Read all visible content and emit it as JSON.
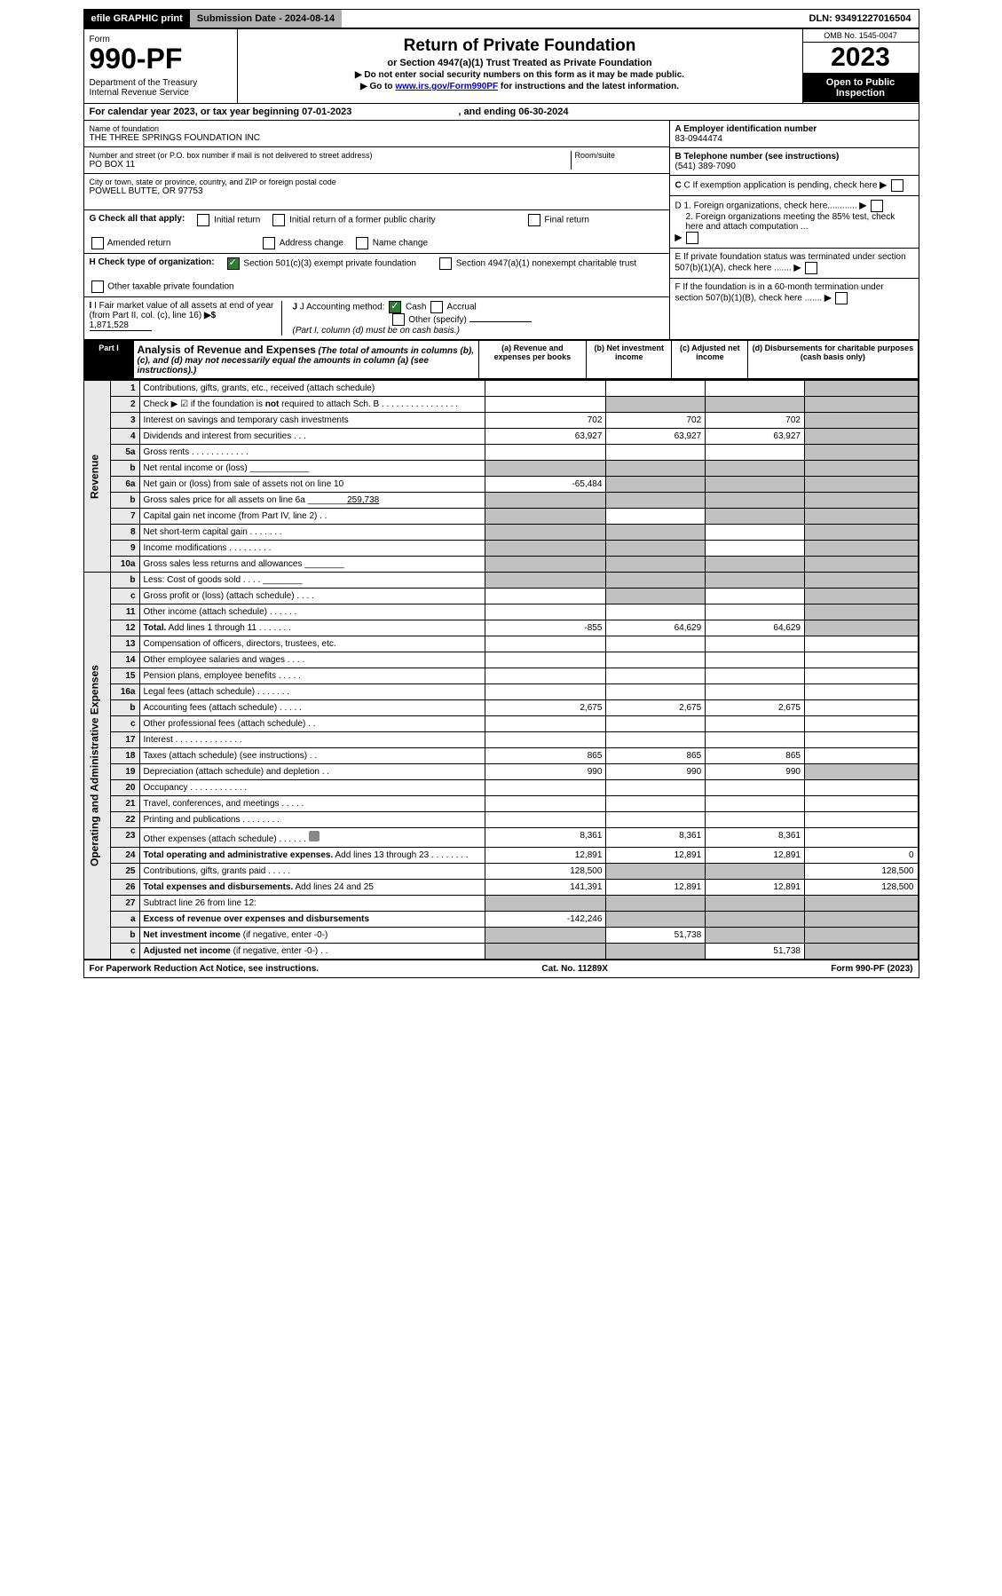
{
  "header_bar": {
    "efile": "efile GRAPHIC print",
    "submission": "Submission Date - 2024-08-14",
    "dln": "DLN: 93491227016504"
  },
  "title_block": {
    "form_word": "Form",
    "form_number": "990-PF",
    "dept": "Department of the Treasury",
    "irs": "Internal Revenue Service",
    "title": "Return of Private Foundation",
    "subtitle": "or Section 4947(a)(1) Trust Treated as Private Foundation",
    "note1": "▶ Do not enter social security numbers on this form as it may be made public.",
    "note2_pre": "▶ Go to ",
    "note2_link": "www.irs.gov/Form990PF",
    "note2_post": " for instructions and the latest information.",
    "omb": "OMB No. 1545-0047",
    "year": "2023",
    "open": "Open to Public Inspection"
  },
  "cal": {
    "line": "For calendar year 2023, or tax year beginning 07-01-2023",
    "end": ", and ending 06-30-2024"
  },
  "identity": {
    "name_label": "Name of foundation",
    "name": "THE THREE SPRINGS FOUNDATION INC",
    "addr_label": "Number and street (or P.O. box number if mail is not delivered to street address)",
    "addr": "PO BOX 11",
    "room_label": "Room/suite",
    "city_label": "City or town, state or province, country, and ZIP or foreign postal code",
    "city": "POWELL BUTTE, OR  97753",
    "a_label": "A Employer identification number",
    "a_val": "83-0944474",
    "b_label": "B Telephone number (see instructions)",
    "b_val": "(541) 389-7090",
    "c_label": "C If exemption application is pending, check here",
    "d1": "D 1. Foreign organizations, check here............",
    "d2": "2. Foreign organizations meeting the 85% test, check here and attach computation ...",
    "e": "E  If private foundation status was terminated under section 507(b)(1)(A), check here .......",
    "f": "F  If the foundation is in a 60-month termination under section 507(b)(1)(B), check here .......",
    "g_label": "G Check all that apply:",
    "g_opts": [
      "Initial return",
      "Initial return of a former public charity",
      "Final return",
      "Amended return",
      "Address change",
      "Name change"
    ],
    "h_label": "H Check type of organization:",
    "h_opts": [
      "Section 501(c)(3) exempt private foundation",
      "Section 4947(a)(1) nonexempt charitable trust",
      "Other taxable private foundation"
    ],
    "i_label": "I Fair market value of all assets at end of year (from Part II, col. (c), line 16)",
    "i_val": "1,871,528",
    "j_label": "J Accounting method:",
    "j_opts": [
      "Cash",
      "Accrual",
      "Other (specify)"
    ],
    "j_note": "(Part I, column (d) must be on cash basis.)"
  },
  "part1": {
    "label": "Part I",
    "title": "Analysis of Revenue and Expenses",
    "note": "(The total of amounts in columns (b), (c), and (d) may not necessarily equal the amounts in column (a) (see instructions).)",
    "col_a": "(a)  Revenue and expenses per books",
    "col_b": "(b)  Net investment income",
    "col_c": "(c)  Adjusted net income",
    "col_d": "(d)  Disbursements for charitable purposes (cash basis only)",
    "v_rev": "Revenue",
    "v_exp": "Operating and Administrative Expenses"
  },
  "rows": [
    {
      "n": "1",
      "d": "Contributions, gifts, grants, etc., received (attach schedule)",
      "a": "",
      "b": "",
      "c": "",
      "dd": "",
      "sd": true
    },
    {
      "n": "2",
      "d": "Check ▶ ☑ if the foundation is <b>not</b> required to attach Sch. B  .  .  .  .  .  .  .  .  .  .  .  .  .  .  .  .",
      "a": "",
      "b": "",
      "c": "",
      "dd": "",
      "shadebcd": true
    },
    {
      "n": "3",
      "d": "Interest on savings and temporary cash investments",
      "a": "702",
      "b": "702",
      "c": "702",
      "dd": "",
      "sd": true
    },
    {
      "n": "4",
      "d": "Dividends and interest from securities  .  .  .",
      "a": "63,927",
      "b": "63,927",
      "c": "63,927",
      "dd": "",
      "sd": true
    },
    {
      "n": "5a",
      "d": "Gross rents  .  .  .  .  .  .  .  .  .  .  .  .",
      "a": "",
      "b": "",
      "c": "",
      "dd": "",
      "sd": true
    },
    {
      "n": "b",
      "d": "Net rental income or (loss) ____________",
      "a": "",
      "b": "",
      "c": "",
      "dd": "",
      "shadebcd": true,
      "sa": true
    },
    {
      "n": "6a",
      "d": "Net gain or (loss) from sale of assets not on line 10",
      "a": "-65,484",
      "b": "",
      "c": "",
      "dd": "",
      "shadebcd": true
    },
    {
      "n": "b",
      "d": "Gross sales price for all assets on line 6a ________<u>259,738</u>",
      "a": "",
      "b": "",
      "c": "",
      "dd": "",
      "shadeall": true
    },
    {
      "n": "7",
      "d": "Capital gain net income (from Part IV, line 2)  .  .",
      "a": "",
      "b": "",
      "c": "",
      "dd": "",
      "sa": true,
      "sc": true,
      "sd": true
    },
    {
      "n": "8",
      "d": "Net short-term capital gain  .  .  .  .  .  .  .",
      "a": "",
      "b": "",
      "c": "",
      "dd": "",
      "sa": true,
      "sb": true,
      "sd": true
    },
    {
      "n": "9",
      "d": "Income modifications  .  .  .  .  .  .  .  .  .",
      "a": "",
      "b": "",
      "c": "",
      "dd": "",
      "sa": true,
      "sb": true,
      "sd": true
    },
    {
      "n": "10a",
      "d": "Gross sales less returns and allowances ________",
      "a": "",
      "b": "",
      "c": "",
      "dd": "",
      "shadeall": true
    },
    {
      "n": "b",
      "d": "Less: Cost of goods sold  .  .  .  . ________",
      "a": "",
      "b": "",
      "c": "",
      "dd": "",
      "shadeall": true
    },
    {
      "n": "c",
      "d": "Gross profit or (loss) (attach schedule)  .  .  .  .",
      "a": "",
      "b": "",
      "c": "",
      "dd": "",
      "sb": true,
      "sd": true
    },
    {
      "n": "11",
      "d": "Other income (attach schedule)  .  .  .  .  .  .",
      "a": "",
      "b": "",
      "c": "",
      "dd": "",
      "sd": true
    },
    {
      "n": "12",
      "d": "<b>Total.</b> Add lines 1 through 11  .  .  .  .  .  .  .",
      "a": "-855",
      "b": "64,629",
      "c": "64,629",
      "dd": "",
      "sd": true
    },
    {
      "n": "13",
      "d": "Compensation of officers, directors, trustees, etc.",
      "a": "",
      "b": "",
      "c": "",
      "dd": "",
      "sec": "exp"
    },
    {
      "n": "14",
      "d": "Other employee salaries and wages  .  .  .  .",
      "a": "",
      "b": "",
      "c": "",
      "dd": ""
    },
    {
      "n": "15",
      "d": "Pension plans, employee benefits  .  .  .  .  .",
      "a": "",
      "b": "",
      "c": "",
      "dd": ""
    },
    {
      "n": "16a",
      "d": "Legal fees (attach schedule)  .  .  .  .  .  .  .",
      "a": "",
      "b": "",
      "c": "",
      "dd": ""
    },
    {
      "n": "b",
      "d": "Accounting fees (attach schedule)  .  .  .  .  .",
      "a": "2,675",
      "b": "2,675",
      "c": "2,675",
      "dd": ""
    },
    {
      "n": "c",
      "d": "Other professional fees (attach schedule)  .  .",
      "a": "",
      "b": "",
      "c": "",
      "dd": ""
    },
    {
      "n": "17",
      "d": "Interest  .  .  .  .  .  .  .  .  .  .  .  .  .  .",
      "a": "",
      "b": "",
      "c": "",
      "dd": ""
    },
    {
      "n": "18",
      "d": "Taxes (attach schedule) (see instructions)  .  .",
      "a": "865",
      "b": "865",
      "c": "865",
      "dd": ""
    },
    {
      "n": "19",
      "d": "Depreciation (attach schedule) and depletion  .  .",
      "a": "990",
      "b": "990",
      "c": "990",
      "dd": "",
      "sd": true
    },
    {
      "n": "20",
      "d": "Occupancy  .  .  .  .  .  .  .  .  .  .  .  .",
      "a": "",
      "b": "",
      "c": "",
      "dd": ""
    },
    {
      "n": "21",
      "d": "Travel, conferences, and meetings  .  .  .  .  .",
      "a": "",
      "b": "",
      "c": "",
      "dd": ""
    },
    {
      "n": "22",
      "d": "Printing and publications  .  .  .  .  .  .  .  .",
      "a": "",
      "b": "",
      "c": "",
      "dd": ""
    },
    {
      "n": "23",
      "d": "Other expenses (attach schedule)  .  .  .  .  .  . <span class='tiny-icon'></span>",
      "a": "8,361",
      "b": "8,361",
      "c": "8,361",
      "dd": ""
    },
    {
      "n": "24",
      "d": "<b>Total operating and administrative expenses.</b> Add lines 13 through 23  .  .  .  .  .  .  .  .",
      "a": "12,891",
      "b": "12,891",
      "c": "12,891",
      "dd": "0"
    },
    {
      "n": "25",
      "d": "Contributions, gifts, grants paid  .  .  .  .  .",
      "a": "128,500",
      "b": "",
      "c": "",
      "dd": "128,500",
      "sb": true,
      "sc": true
    },
    {
      "n": "26",
      "d": "<b>Total expenses and disbursements.</b> Add lines 24 and 25",
      "a": "141,391",
      "b": "12,891",
      "c": "12,891",
      "dd": "128,500"
    },
    {
      "n": "27",
      "d": "Subtract line 26 from line 12:",
      "a": "",
      "b": "",
      "c": "",
      "dd": "",
      "shadeall": true,
      "nolabel": true
    },
    {
      "n": "a",
      "d": "<b>Excess of revenue over expenses and disbursements</b>",
      "a": "-142,246",
      "b": "",
      "c": "",
      "dd": "",
      "sb": true,
      "sc": true,
      "sd": true
    },
    {
      "n": "b",
      "d": "<b>Net investment income</b> (if negative, enter -0-)",
      "a": "",
      "b": "51,738",
      "c": "",
      "dd": "",
      "sa": true,
      "sc": true,
      "sd": true
    },
    {
      "n": "c",
      "d": "<b>Adjusted net income</b> (if negative, enter -0-)  .  .",
      "a": "",
      "b": "",
      "c": "51,738",
      "dd": "",
      "sa": true,
      "sb": true,
      "sd": true
    }
  ],
  "footer": {
    "left": "For Paperwork Reduction Act Notice, see instructions.",
    "mid": "Cat. No. 11289X",
    "right": "Form 990-PF (2023)"
  }
}
